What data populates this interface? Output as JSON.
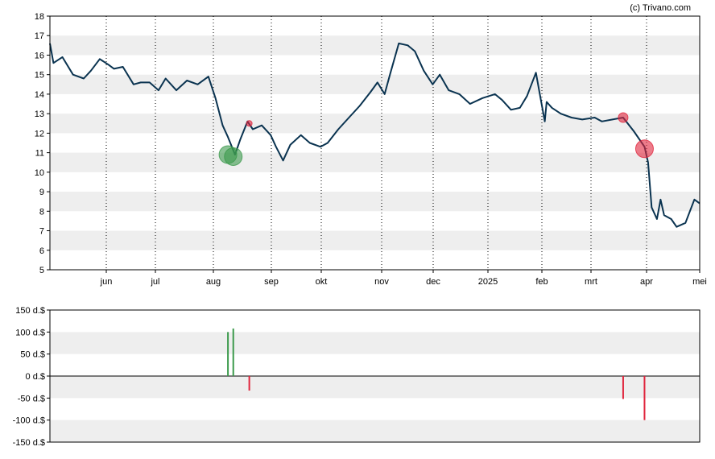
{
  "watermark": "(c) Trivano.com",
  "colors": {
    "line": "#0a3350",
    "band": "#eeeeee",
    "buy": "#3c9a4c",
    "sell": "#e0243c",
    "axis": "#000000"
  },
  "chart_data": [
    {
      "type": "line",
      "ylim": [
        5,
        18
      ],
      "yticks": [
        "5",
        "6",
        "7",
        "8",
        "9",
        "10",
        "11",
        "12",
        "13",
        "14",
        "15",
        "16",
        "17",
        "18"
      ],
      "xticks": [
        "jun",
        "jul",
        "aug",
        "sep",
        "okt",
        "nov",
        "dec",
        "2025",
        "feb",
        "mrt",
        "apr",
        "mei"
      ],
      "grid": "alternating horizontal bands, dotted vertical lines at month starts",
      "series": [
        {
          "x": [
            "2024-05-01",
            "2024-05-03",
            "2024-05-08",
            "2024-05-14",
            "2024-05-20",
            "2024-05-24",
            "2024-05-29",
            "2024-06-03",
            "2024-06-06",
            "2024-06-11",
            "2024-06-17",
            "2024-06-21",
            "2024-06-26",
            "2024-07-01",
            "2024-07-05",
            "2024-07-11",
            "2024-07-17",
            "2024-07-23",
            "2024-07-29",
            "2024-08-02",
            "2024-08-06",
            "2024-08-09",
            "2024-08-13",
            "2024-08-16",
            "2024-08-20",
            "2024-08-23",
            "2024-08-28",
            "2024-09-02",
            "2024-09-05",
            "2024-09-09",
            "2024-09-13",
            "2024-09-19",
            "2024-09-24",
            "2024-09-30",
            "2024-10-04",
            "2024-10-10",
            "2024-10-16",
            "2024-10-22",
            "2024-10-28",
            "2024-11-01",
            "2024-11-05",
            "2024-11-08",
            "2024-11-13",
            "2024-11-18",
            "2024-11-22",
            "2024-11-27",
            "2024-12-02",
            "2024-12-06",
            "2024-12-11",
            "2024-12-17",
            "2024-12-23",
            "2024-12-30",
            "2025-01-06",
            "2025-01-10",
            "2025-01-15",
            "2025-01-20",
            "2025-01-24",
            "2025-01-29",
            "2025-02-03",
            "2025-02-04",
            "2025-02-07",
            "2025-02-12",
            "2025-02-18",
            "2025-02-24",
            "2025-03-03",
            "2025-03-07",
            "2025-03-13",
            "2025-03-19",
            "2025-03-25",
            "2025-03-31",
            "2025-04-02",
            "2025-04-04",
            "2025-04-07",
            "2025-04-09",
            "2025-04-11",
            "2025-04-15",
            "2025-04-18",
            "2025-04-23",
            "2025-04-28",
            "2025-05-01"
          ],
          "y": [
            16.6,
            15.6,
            15.9,
            15.0,
            14.8,
            15.2,
            15.8,
            15.5,
            15.3,
            15.4,
            14.5,
            14.6,
            14.6,
            14.2,
            14.8,
            14.2,
            14.7,
            14.5,
            14.9,
            13.8,
            12.4,
            11.8,
            10.9,
            11.7,
            12.6,
            12.2,
            12.4,
            11.9,
            11.3,
            10.6,
            11.4,
            11.9,
            11.5,
            11.3,
            11.5,
            12.2,
            12.8,
            13.4,
            14.1,
            14.6,
            14.0,
            15.0,
            16.6,
            16.5,
            16.2,
            15.2,
            14.5,
            15.0,
            14.2,
            14.0,
            13.5,
            13.8,
            14.0,
            13.7,
            13.2,
            13.3,
            13.9,
            15.1,
            12.6,
            13.6,
            13.3,
            13.0,
            12.8,
            12.7,
            12.8,
            12.6,
            12.7,
            12.8,
            12.1,
            11.3,
            10.5,
            8.2,
            7.6,
            8.6,
            7.8,
            7.6,
            7.2,
            7.4,
            8.6,
            8.4
          ]
        }
      ],
      "markers": [
        {
          "x": "2024-08-09",
          "y": 10.9,
          "kind": "buy",
          "size": "large"
        },
        {
          "x": "2024-08-12",
          "y": 10.8,
          "kind": "buy",
          "size": "large"
        },
        {
          "x": "2024-08-21",
          "y": 12.5,
          "kind": "sell",
          "size": "small"
        },
        {
          "x": "2025-03-19",
          "y": 12.8,
          "kind": "sell",
          "size": "medium"
        },
        {
          "x": "2025-03-31",
          "y": 11.2,
          "kind": "sell",
          "size": "large"
        }
      ]
    },
    {
      "type": "bar",
      "ylim": [
        -150,
        150
      ],
      "yticks": [
        "150 d.$",
        "100 d.$",
        "50 d.$",
        "0 d.$",
        "-50 d.$",
        "-100 d.$",
        "-150 d.$"
      ],
      "grid": "alternating horizontal bands",
      "bars": [
        {
          "x": "2024-08-09",
          "value": 100,
          "kind": "buy"
        },
        {
          "x": "2024-08-12",
          "value": 108,
          "kind": "buy"
        },
        {
          "x": "2024-08-21",
          "value": -33,
          "kind": "sell"
        },
        {
          "x": "2025-03-19",
          "value": -52,
          "kind": "sell"
        },
        {
          "x": "2025-03-31",
          "value": -100,
          "kind": "sell"
        }
      ]
    }
  ]
}
